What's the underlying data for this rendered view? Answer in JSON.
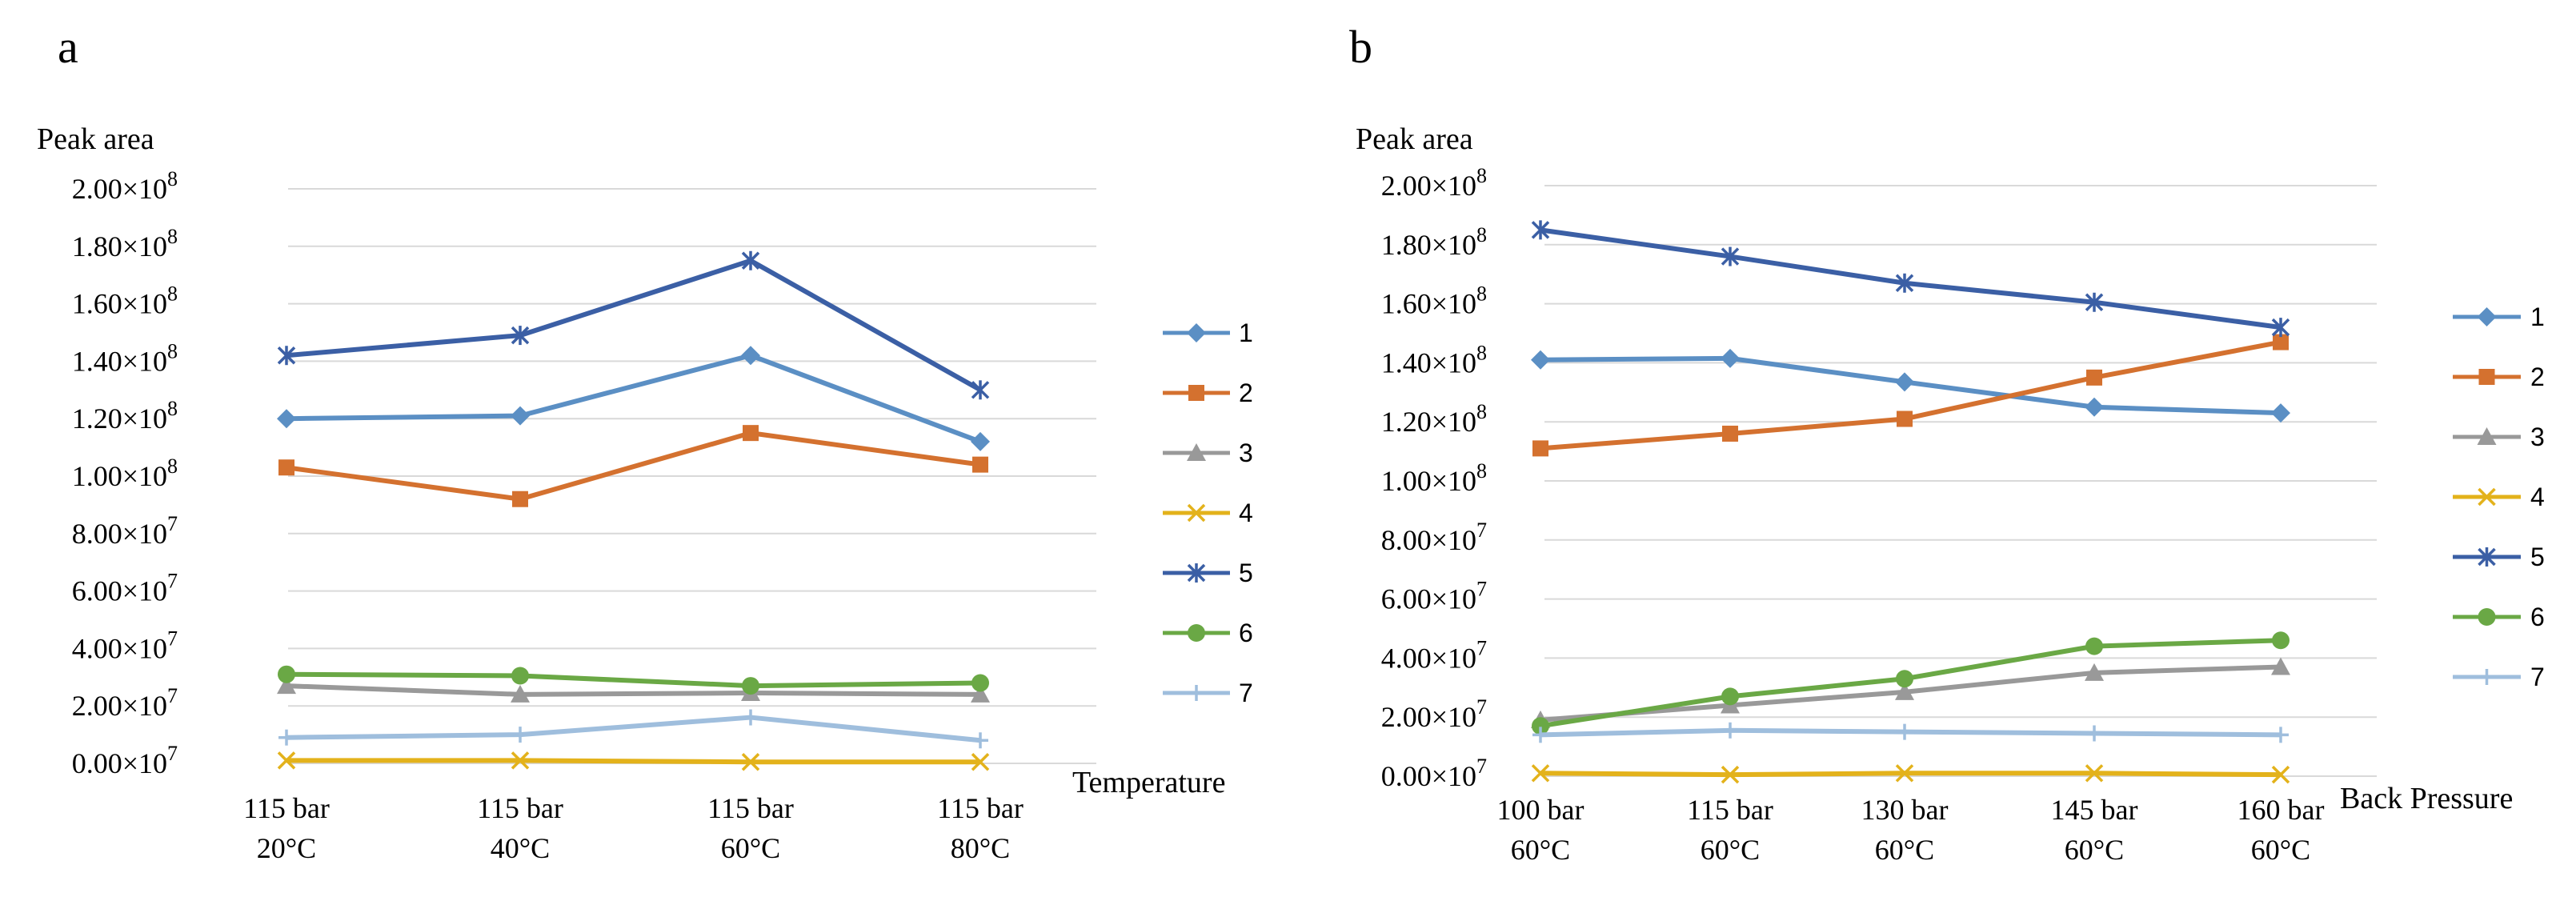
{
  "chart_data": [
    {
      "type": "line",
      "panel_label": "a",
      "title": "",
      "ylabel": "Peak area",
      "xlabel": "Temperature",
      "ylim": [
        0,
        200000000
      ],
      "grid": true,
      "legend": "right",
      "y_tick_labels": [
        {
          "base": "0.00×10",
          "exp": "7"
        },
        {
          "base": "2.00×10",
          "exp": "7"
        },
        {
          "base": "4.00×10",
          "exp": "7"
        },
        {
          "base": "6.00×10",
          "exp": "7"
        },
        {
          "base": "8.00×10",
          "exp": "7"
        },
        {
          "base": "1.00×10",
          "exp": "8"
        },
        {
          "base": "1.20×10",
          "exp": "8"
        },
        {
          "base": "1.40×10",
          "exp": "8"
        },
        {
          "base": "1.60×10",
          "exp": "8"
        },
        {
          "base": "1.80×10",
          "exp": "8"
        },
        {
          "base": "2.00×10",
          "exp": "8"
        }
      ],
      "categories": [
        {
          "line1": "115 bar",
          "line2": "20°C"
        },
        {
          "line1": "115 bar",
          "line2": "40°C"
        },
        {
          "line1": "115 bar",
          "line2": "60°C"
        },
        {
          "line1": "115 bar",
          "line2": "80°C"
        }
      ],
      "series": [
        {
          "name": "1",
          "color": "#5b8fc4",
          "marker": "diamond",
          "values": [
            120000000,
            121000000,
            142000000,
            112000000
          ]
        },
        {
          "name": "2",
          "color": "#d4712f",
          "marker": "square",
          "values": [
            103000000,
            92000000,
            115000000,
            104000000
          ]
        },
        {
          "name": "3",
          "color": "#999999",
          "marker": "triangle",
          "values": [
            27000000,
            24000000,
            24500000,
            24000000
          ]
        },
        {
          "name": "4",
          "color": "#e3b21b",
          "marker": "x",
          "values": [
            1000000,
            1000000,
            500000,
            500000
          ]
        },
        {
          "name": "5",
          "color": "#3b5fa5",
          "marker": "asterisk",
          "values": [
            142000000,
            149000000,
            175000000,
            130000000
          ]
        },
        {
          "name": "6",
          "color": "#6aa845",
          "marker": "circle",
          "values": [
            31000000,
            30500000,
            27000000,
            28000000
          ]
        },
        {
          "name": "7",
          "color": "#9fbedd",
          "marker": "plus",
          "values": [
            9000000,
            10000000,
            16000000,
            8000000
          ]
        }
      ]
    },
    {
      "type": "line",
      "panel_label": "b",
      "title": "",
      "ylabel": "Peak area",
      "xlabel": "Back   Pressure",
      "ylim": [
        0,
        200000000
      ],
      "grid": true,
      "legend": "right",
      "y_tick_labels": [
        {
          "base": "0.00×10",
          "exp": "7"
        },
        {
          "base": "2.00×10",
          "exp": "7"
        },
        {
          "base": "4.00×10",
          "exp": "7"
        },
        {
          "base": "6.00×10",
          "exp": "7"
        },
        {
          "base": "8.00×10",
          "exp": "7"
        },
        {
          "base": "1.00×10",
          "exp": "8"
        },
        {
          "base": "1.20×10",
          "exp": "8"
        },
        {
          "base": "1.40×10",
          "exp": "8"
        },
        {
          "base": "1.60×10",
          "exp": "8"
        },
        {
          "base": "1.80×10",
          "exp": "8"
        },
        {
          "base": "2.00×10",
          "exp": "8"
        }
      ],
      "categories": [
        {
          "line1": "100 bar",
          "line2": "60°C"
        },
        {
          "line1": "115 bar",
          "line2": "60°C"
        },
        {
          "line1": "130 bar",
          "line2": "60°C"
        },
        {
          "line1": "145 bar",
          "line2": "60°C"
        },
        {
          "line1": "160 bar",
          "line2": "60°C"
        }
      ],
      "series": [
        {
          "name": "1",
          "color": "#5b8fc4",
          "marker": "diamond",
          "values": [
            141000000,
            141500000,
            133500000,
            125000000,
            123000000
          ]
        },
        {
          "name": "2",
          "color": "#d4712f",
          "marker": "square",
          "values": [
            111000000,
            116000000,
            121000000,
            135000000,
            147000000
          ]
        },
        {
          "name": "3",
          "color": "#999999",
          "marker": "triangle",
          "values": [
            19000000,
            24000000,
            28500000,
            35000000,
            37000000
          ]
        },
        {
          "name": "4",
          "color": "#e3b21b",
          "marker": "x",
          "values": [
            1000000,
            500000,
            1000000,
            1000000,
            500000
          ]
        },
        {
          "name": "5",
          "color": "#3b5fa5",
          "marker": "asterisk",
          "values": [
            185000000,
            176000000,
            167000000,
            160500000,
            152000000
          ]
        },
        {
          "name": "6",
          "color": "#6aa845",
          "marker": "circle",
          "values": [
            17000000,
            27000000,
            33000000,
            44000000,
            46000000
          ]
        },
        {
          "name": "7",
          "color": "#9fbedd",
          "marker": "plus",
          "values": [
            14000000,
            15500000,
            15000000,
            14500000,
            14000000
          ]
        }
      ]
    }
  ]
}
